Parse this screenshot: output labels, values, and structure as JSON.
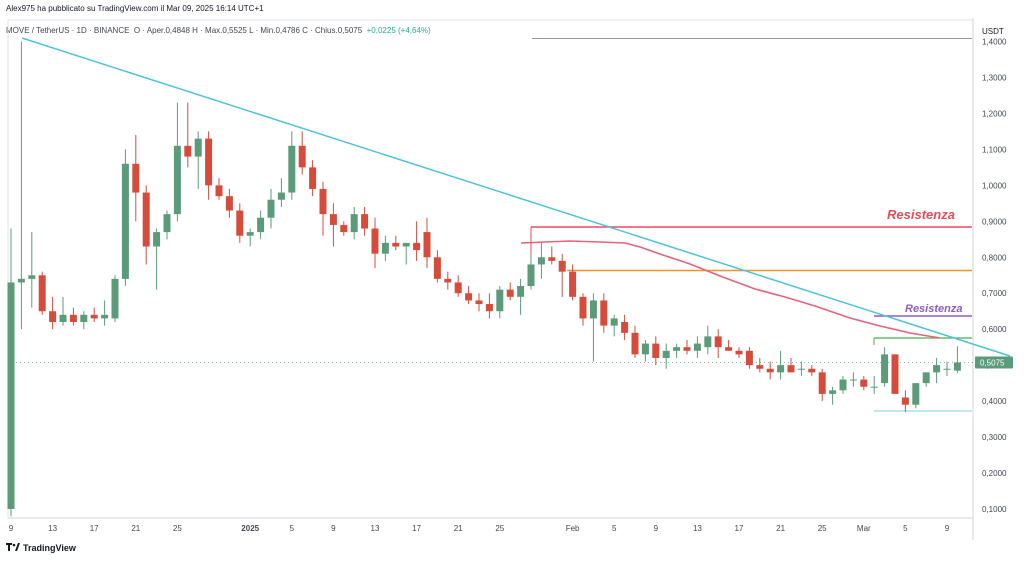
{
  "header": {
    "published": "Alex975 ha pubblicato su TradingView.com il Mar 09, 2025 16:14 UTC+1"
  },
  "info": {
    "symbol": "MOVE / TetherUS · 1D · BINANCE",
    "ohlc": "O · Aper.0,4848 H · Max.0,5525 L · Min.0,4786 C · Chius.0,5075",
    "change": "+0,0225 (+4,64%)"
  },
  "footer": {
    "logo": "TradingView"
  },
  "colors": {
    "up": "#5b9b7a",
    "down": "#d64c3c",
    "trendline": "#4dc3d9",
    "ma": "#e8627a",
    "resistance_red": "#e84c5a",
    "resistance_purple": "#8e5bc5",
    "orange": "#f7931a",
    "green": "#4caf50",
    "cyan": "#7fd3df",
    "last_price": "#5b9b7a"
  },
  "chart_data": {
    "type": "candlestick",
    "currency": "USDT",
    "ylim": [
      0.08,
      1.45
    ],
    "y_ticks": [
      "0,1000",
      "0,2000",
      "0,3000",
      "0,4000",
      "0,5000",
      "0,6000",
      "0,7000",
      "0,8000",
      "0,9000",
      "1,0000",
      "1,1000",
      "1,2000",
      "1,3000",
      "1,4000"
    ],
    "x_ticks": [
      {
        "label": "9",
        "idx": 0
      },
      {
        "label": "13",
        "idx": 4
      },
      {
        "label": "17",
        "idx": 8
      },
      {
        "label": "21",
        "idx": 12
      },
      {
        "label": "25",
        "idx": 16
      },
      {
        "label": "2025",
        "idx": 23
      },
      {
        "label": "5",
        "idx": 27
      },
      {
        "label": "9",
        "idx": 31
      },
      {
        "label": "13",
        "idx": 35
      },
      {
        "label": "17",
        "idx": 39
      },
      {
        "label": "21",
        "idx": 43
      },
      {
        "label": "25",
        "idx": 47
      },
      {
        "label": "Feb",
        "idx": 54
      },
      {
        "label": "5",
        "idx": 58
      },
      {
        "label": "9",
        "idx": 62
      },
      {
        "label": "13",
        "idx": 66
      },
      {
        "label": "17",
        "idx": 70
      },
      {
        "label": "21",
        "idx": 74
      },
      {
        "label": "25",
        "idx": 78
      },
      {
        "label": "Mar",
        "idx": 82
      },
      {
        "label": "5",
        "idx": 86
      },
      {
        "label": "9",
        "idx": 90
      }
    ],
    "candles": [
      [
        0.1,
        0.88,
        0.08,
        0.73
      ],
      [
        0.73,
        1.4,
        0.6,
        0.74
      ],
      [
        0.74,
        0.87,
        0.66,
        0.75
      ],
      [
        0.75,
        0.76,
        0.64,
        0.65
      ],
      [
        0.65,
        0.69,
        0.6,
        0.62
      ],
      [
        0.62,
        0.69,
        0.61,
        0.64
      ],
      [
        0.64,
        0.66,
        0.61,
        0.62
      ],
      [
        0.62,
        0.65,
        0.6,
        0.64
      ],
      [
        0.64,
        0.66,
        0.62,
        0.63
      ],
      [
        0.63,
        0.68,
        0.61,
        0.64
      ],
      [
        0.63,
        0.75,
        0.62,
        0.74
      ],
      [
        0.74,
        1.1,
        0.72,
        1.06
      ],
      [
        1.06,
        1.14,
        0.9,
        0.98
      ],
      [
        0.98,
        1.0,
        0.78,
        0.83
      ],
      [
        0.83,
        0.88,
        0.71,
        0.87
      ],
      [
        0.87,
        0.93,
        0.85,
        0.92
      ],
      [
        0.92,
        1.23,
        0.9,
        1.11
      ],
      [
        1.11,
        1.23,
        1.05,
        1.08
      ],
      [
        1.08,
        1.15,
        0.99,
        1.13
      ],
      [
        1.13,
        1.15,
        0.96,
        1.0
      ],
      [
        1.0,
        1.02,
        0.96,
        0.97
      ],
      [
        0.97,
        0.99,
        0.91,
        0.93
      ],
      [
        0.93,
        0.95,
        0.84,
        0.86
      ],
      [
        0.86,
        0.88,
        0.83,
        0.87
      ],
      [
        0.87,
        0.93,
        0.85,
        0.91
      ],
      [
        0.91,
        0.99,
        0.88,
        0.96
      ],
      [
        0.96,
        1.02,
        0.94,
        0.98
      ],
      [
        0.98,
        1.15,
        0.96,
        1.11
      ],
      [
        1.11,
        1.15,
        1.03,
        1.05
      ],
      [
        1.05,
        1.07,
        0.97,
        0.99
      ],
      [
        0.99,
        1.01,
        0.86,
        0.92
      ],
      [
        0.92,
        0.95,
        0.83,
        0.89
      ],
      [
        0.89,
        0.9,
        0.86,
        0.87
      ],
      [
        0.87,
        0.94,
        0.85,
        0.92
      ],
      [
        0.92,
        0.94,
        0.86,
        0.88
      ],
      [
        0.88,
        0.91,
        0.77,
        0.81
      ],
      [
        0.81,
        0.86,
        0.79,
        0.84
      ],
      [
        0.84,
        0.86,
        0.82,
        0.83
      ],
      [
        0.83,
        0.84,
        0.78,
        0.84
      ],
      [
        0.84,
        0.9,
        0.79,
        0.82
      ],
      [
        0.87,
        0.91,
        0.77,
        0.8
      ],
      [
        0.8,
        0.82,
        0.73,
        0.74
      ],
      [
        0.74,
        0.76,
        0.71,
        0.73
      ],
      [
        0.73,
        0.75,
        0.69,
        0.7
      ],
      [
        0.7,
        0.72,
        0.67,
        0.68
      ],
      [
        0.68,
        0.7,
        0.65,
        0.67
      ],
      [
        0.67,
        0.7,
        0.63,
        0.65
      ],
      [
        0.65,
        0.72,
        0.63,
        0.71
      ],
      [
        0.71,
        0.73,
        0.68,
        0.69
      ],
      [
        0.69,
        0.74,
        0.64,
        0.72
      ],
      [
        0.72,
        0.81,
        0.71,
        0.78
      ],
      [
        0.78,
        0.84,
        0.74,
        0.8
      ],
      [
        0.8,
        0.83,
        0.78,
        0.79
      ],
      [
        0.79,
        0.81,
        0.69,
        0.76
      ],
      [
        0.76,
        0.78,
        0.68,
        0.69
      ],
      [
        0.69,
        0.7,
        0.61,
        0.63
      ],
      [
        0.63,
        0.7,
        0.51,
        0.68
      ],
      [
        0.68,
        0.7,
        0.59,
        0.61
      ],
      [
        0.61,
        0.64,
        0.58,
        0.63
      ],
      [
        0.62,
        0.64,
        0.57,
        0.59
      ],
      [
        0.59,
        0.61,
        0.52,
        0.53
      ],
      [
        0.53,
        0.57,
        0.51,
        0.56
      ],
      [
        0.56,
        0.58,
        0.5,
        0.52
      ],
      [
        0.52,
        0.56,
        0.49,
        0.54
      ],
      [
        0.54,
        0.56,
        0.52,
        0.55
      ],
      [
        0.55,
        0.57,
        0.53,
        0.54
      ],
      [
        0.54,
        0.58,
        0.52,
        0.56
      ],
      [
        0.55,
        0.61,
        0.53,
        0.58
      ],
      [
        0.58,
        0.6,
        0.52,
        0.55
      ],
      [
        0.55,
        0.57,
        0.54,
        0.54
      ],
      [
        0.54,
        0.55,
        0.52,
        0.53
      ],
      [
        0.54,
        0.55,
        0.49,
        0.5
      ],
      [
        0.5,
        0.52,
        0.48,
        0.49
      ],
      [
        0.49,
        0.51,
        0.46,
        0.48
      ],
      [
        0.48,
        0.54,
        0.46,
        0.5
      ],
      [
        0.5,
        0.52,
        0.48,
        0.48
      ],
      [
        0.49,
        0.51,
        0.47,
        0.49
      ],
      [
        0.49,
        0.5,
        0.47,
        0.48
      ],
      [
        0.48,
        0.49,
        0.4,
        0.42
      ],
      [
        0.42,
        0.44,
        0.39,
        0.43
      ],
      [
        0.43,
        0.47,
        0.42,
        0.46
      ],
      [
        0.46,
        0.48,
        0.44,
        0.46
      ],
      [
        0.46,
        0.47,
        0.43,
        0.44
      ],
      [
        0.44,
        0.47,
        0.42,
        0.44
      ],
      [
        0.45,
        0.55,
        0.44,
        0.53
      ],
      [
        0.53,
        0.53,
        0.42,
        0.42
      ],
      [
        0.41,
        0.43,
        0.37,
        0.39
      ],
      [
        0.39,
        0.44,
        0.38,
        0.45
      ],
      [
        0.45,
        0.48,
        0.44,
        0.48
      ],
      [
        0.48,
        0.52,
        0.45,
        0.5
      ],
      [
        0.49,
        0.51,
        0.47,
        0.49
      ],
      [
        0.4848,
        0.5525,
        0.4786,
        0.5075
      ]
    ],
    "last_price_label": "0,5075",
    "annotations": [
      {
        "text": "Resistenza"
      },
      {
        "text": "Resistenza"
      }
    ]
  }
}
